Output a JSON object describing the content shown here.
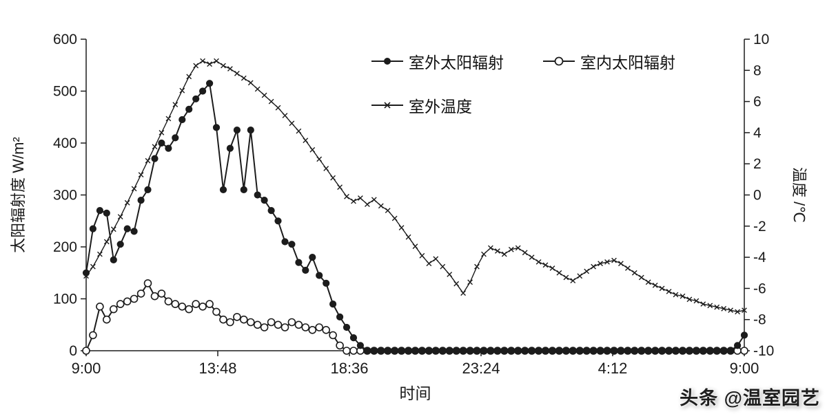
{
  "watermark": {
    "text": "头条 @温室园艺"
  },
  "chart_data": {
    "type": "line",
    "title": "",
    "xlabel": "时间",
    "ylabel_left": "太阳辐射度 W/m²",
    "ylabel_right": "温度 /℃",
    "line_color": "#1c1c1c",
    "grid": false,
    "legend_position": "top-center-inside",
    "x_axis": {
      "range": [
        0,
        24
      ],
      "ticks": [
        0,
        4.8,
        9.6,
        14.4,
        19.2,
        24
      ],
      "tick_labels": [
        "9:00",
        "13:48",
        "18:36",
        "23:24",
        "4:12",
        "9:00"
      ]
    },
    "left_axis": {
      "range": [
        0,
        600
      ],
      "ticks": [
        0,
        100,
        200,
        300,
        400,
        500,
        600
      ]
    },
    "right_axis": {
      "range": [
        -10,
        10
      ],
      "ticks": [
        -10,
        -8,
        -6,
        -4,
        -2,
        0,
        2,
        4,
        6,
        8,
        10
      ]
    },
    "x": [
      0,
      0.25,
      0.5,
      0.75,
      1,
      1.25,
      1.5,
      1.75,
      2,
      2.25,
      2.5,
      2.75,
      3,
      3.25,
      3.5,
      3.75,
      4,
      4.25,
      4.5,
      4.75,
      5,
      5.25,
      5.5,
      5.75,
      6,
      6.25,
      6.5,
      6.75,
      7,
      7.25,
      7.5,
      7.75,
      8,
      8.25,
      8.5,
      8.75,
      9,
      9.25,
      9.5,
      9.75,
      10,
      10.25,
      10.5,
      10.75,
      11,
      11.25,
      11.5,
      11.75,
      12,
      12.25,
      12.5,
      12.75,
      13,
      13.25,
      13.5,
      13.75,
      14,
      14.25,
      14.5,
      14.75,
      15,
      15.25,
      15.5,
      15.75,
      16,
      16.25,
      16.5,
      16.75,
      17,
      17.25,
      17.5,
      17.75,
      18,
      18.25,
      18.5,
      18.75,
      19,
      19.25,
      19.5,
      19.75,
      20,
      20.25,
      20.5,
      20.75,
      21,
      21.25,
      21.5,
      21.75,
      22,
      22.25,
      22.5,
      22.75,
      23,
      23.25,
      23.5,
      23.75,
      24
    ],
    "series": [
      {
        "id": "outdoor-radiation",
        "name": "室外太阳辐射",
        "axis": "left",
        "marker": "filled-circle",
        "values": [
          150,
          235,
          270,
          265,
          175,
          205,
          235,
          230,
          290,
          310,
          370,
          400,
          390,
          410,
          445,
          465,
          485,
          500,
          515,
          430,
          310,
          390,
          425,
          310,
          425,
          300,
          290,
          270,
          250,
          210,
          205,
          170,
          155,
          180,
          145,
          130,
          90,
          65,
          45,
          25,
          10,
          0,
          0,
          0,
          0,
          0,
          0,
          0,
          0,
          0,
          0,
          0,
          0,
          0,
          0,
          0,
          0,
          0,
          0,
          0,
          0,
          0,
          0,
          0,
          0,
          0,
          0,
          0,
          0,
          0,
          0,
          0,
          0,
          0,
          0,
          0,
          0,
          0,
          0,
          0,
          0,
          0,
          0,
          0,
          0,
          0,
          0,
          0,
          0,
          0,
          0,
          0,
          0,
          0,
          0,
          10,
          30
        ]
      },
      {
        "id": "indoor-radiation",
        "name": "室内太阳辐射",
        "axis": "left",
        "marker": "open-circle",
        "values": [
          0,
          30,
          85,
          60,
          80,
          90,
          95,
          100,
          110,
          130,
          105,
          110,
          95,
          90,
          85,
          80,
          90,
          85,
          90,
          75,
          60,
          55,
          65,
          60,
          55,
          50,
          45,
          55,
          50,
          45,
          55,
          50,
          45,
          40,
          45,
          40,
          30,
          10,
          0,
          0,
          0,
          0,
          0,
          0,
          0,
          0,
          0,
          0,
          0,
          0,
          0,
          0,
          0,
          0,
          0,
          0,
          0,
          0,
          0,
          0,
          0,
          0,
          0,
          0,
          0,
          0,
          0,
          0,
          0,
          0,
          0,
          0,
          0,
          0,
          0,
          0,
          0,
          0,
          0,
          0,
          0,
          0,
          0,
          0,
          0,
          0,
          0,
          0,
          0,
          0,
          0,
          0,
          0,
          0,
          0,
          0,
          0
        ]
      },
      {
        "id": "outdoor-temperature",
        "name": "室外温度",
        "axis": "right",
        "marker": "x",
        "values": [
          -5.2,
          -4.6,
          -3.8,
          -3,
          -2.2,
          -1.4,
          -0.5,
          0.4,
          1.3,
          2.2,
          3.1,
          4,
          4.9,
          5.8,
          6.7,
          7.6,
          8.3,
          8.6,
          8.4,
          8.6,
          8.3,
          8.1,
          7.8,
          7.5,
          7.2,
          6.8,
          6.4,
          6,
          5.6,
          5.1,
          4.6,
          4.1,
          3.5,
          2.9,
          2.3,
          1.7,
          1.1,
          0.5,
          -0.1,
          -0.4,
          -0.2,
          -0.6,
          -0.3,
          -0.7,
          -1,
          -1.5,
          -2.1,
          -2.7,
          -3.3,
          -3.9,
          -4.4,
          -4.1,
          -4.6,
          -5.1,
          -5.7,
          -6.3,
          -5.6,
          -4.6,
          -3.8,
          -3.4,
          -3.6,
          -3.8,
          -3.5,
          -3.4,
          -3.7,
          -4,
          -4.3,
          -4.5,
          -4.7,
          -5,
          -5.3,
          -5.5,
          -5.2,
          -4.9,
          -4.6,
          -4.4,
          -4.3,
          -4.2,
          -4.4,
          -4.7,
          -5,
          -5.3,
          -5.6,
          -5.8,
          -6,
          -6.2,
          -6.4,
          -6.5,
          -6.7,
          -6.8,
          -7,
          -7.1,
          -7.2,
          -7.3,
          -7.4,
          -7.5,
          -7.4
        ]
      }
    ]
  }
}
